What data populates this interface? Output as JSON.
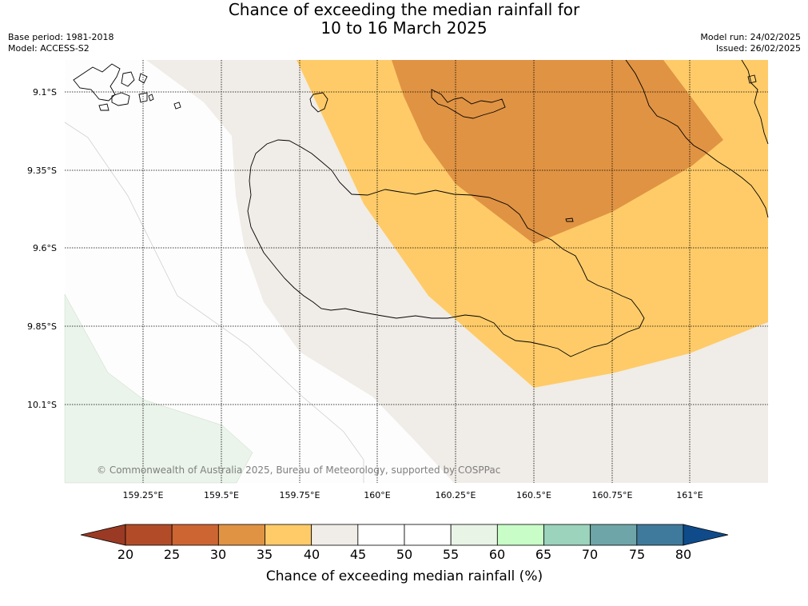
{
  "title": {
    "line1": "Chance of exceeding the median rainfall for",
    "line2": "10 to 16 March 2025"
  },
  "meta": {
    "base_period": "Base period: 1981-2018",
    "model": "Model: ACCESS-S2",
    "model_run": "Model run: 24/02/2025",
    "issued": "Issued: 26/02/2025"
  },
  "map": {
    "lat_labels": [
      "9.1°S",
      "9.35°S",
      "9.6°S",
      "9.85°S",
      "10.1°S"
    ],
    "lon_labels": [
      "159.25°E",
      "159.5°E",
      "159.75°E",
      "160°E",
      "160.25°E",
      "160.5°E",
      "160.75°E",
      "161°E"
    ],
    "copyright": "© Commonwealth of Australia 2025, Bureau of Meteorology, supported by COSPPac",
    "colors": {
      "band_40_45": "#f0ece7",
      "band_35_40": "#fecb68",
      "band_30_35": "#e09343",
      "band_50_55": "#fdfdfd",
      "band_55_60": "#eaf4ea",
      "coast": "#000000",
      "grid": "#000000"
    }
  },
  "colorbar": {
    "ticks": [
      "20",
      "25",
      "30",
      "35",
      "40",
      "45",
      "50",
      "55",
      "60",
      "65",
      "70",
      "75",
      "80"
    ],
    "label": "Chance of exceeding median rainfall (%)",
    "colors": [
      "#9b3a24",
      "#b24c28",
      "#cd6533",
      "#e09343",
      "#fecb68",
      "#f0ece7",
      "#ffffff",
      "#ffffff",
      "#e8f4e6",
      "#c8fdc8",
      "#9bd3bd",
      "#6ea5a8",
      "#3f7a9c",
      "#0f4b8a"
    ]
  }
}
